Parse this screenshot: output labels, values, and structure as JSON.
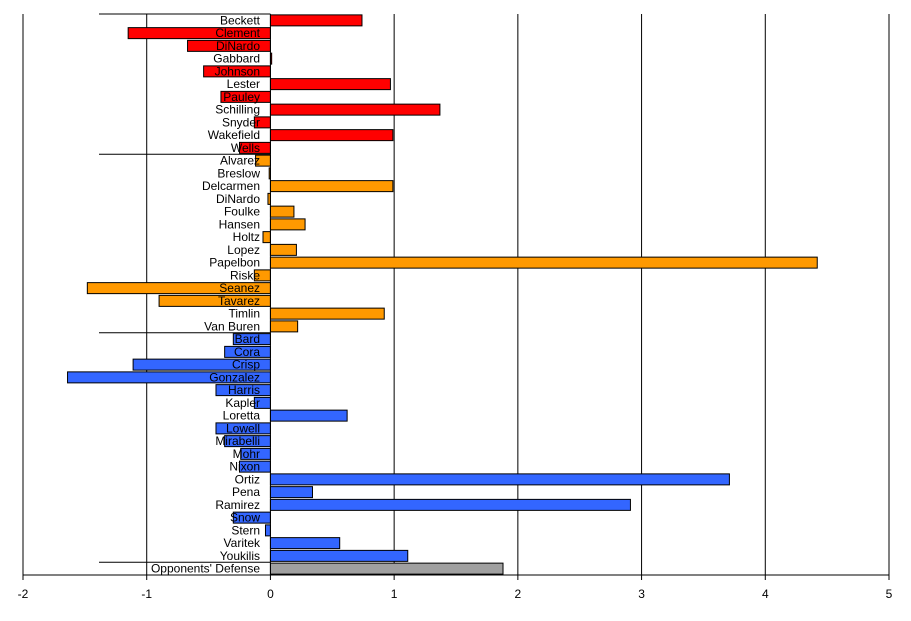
{
  "chart_data": {
    "type": "bar",
    "orientation": "horizontal",
    "title": "",
    "xlabel": "",
    "ylabel": "",
    "xlim": [
      -2,
      5
    ],
    "x_ticks": [
      -2,
      -1,
      0,
      1,
      2,
      3,
      4,
      5
    ],
    "grid": "vertical",
    "legend": "none",
    "group_colors": {
      "starters": "#ff0000",
      "relievers": "#ff9900",
      "position_players": "#3366ff",
      "opponents": "#a0a0a0"
    },
    "categories": [
      "Beckett",
      "Clement",
      "DiNardo",
      "Gabbard",
      "Johnson",
      "Lester",
      "Pauley",
      "Schilling",
      "Snyder",
      "Wakefield",
      "Wells",
      "Alvarez",
      "Breslow",
      "Delcarmen",
      "DiNardo",
      "Foulke",
      "Hansen",
      "Holtz",
      "Lopez",
      "Papelbon",
      "Riske",
      "Seanez",
      "Tavarez",
      "Timlin",
      "Van Buren",
      "Bard",
      "Cora",
      "Crisp",
      "Gonzalez",
      "Harris",
      "Kapler",
      "Loretta",
      "Lowell",
      "Mirabelli",
      "Mohr",
      "Nixon",
      "Ortiz",
      "Pena",
      "Ramirez",
      "Snow",
      "Stern",
      "Varitek",
      "Youkilis",
      "Opponents' Defense"
    ],
    "groups": [
      "starters",
      "starters",
      "starters",
      "starters",
      "starters",
      "starters",
      "starters",
      "starters",
      "starters",
      "starters",
      "starters",
      "relievers",
      "relievers",
      "relievers",
      "relievers",
      "relievers",
      "relievers",
      "relievers",
      "relievers",
      "relievers",
      "relievers",
      "relievers",
      "relievers",
      "relievers",
      "relievers",
      "position_players",
      "position_players",
      "position_players",
      "position_players",
      "position_players",
      "position_players",
      "position_players",
      "position_players",
      "position_players",
      "position_players",
      "position_players",
      "position_players",
      "position_players",
      "position_players",
      "position_players",
      "position_players",
      "position_players",
      "position_players",
      "opponents"
    ],
    "values": [
      0.74,
      -1.15,
      -0.67,
      0.01,
      -0.54,
      0.97,
      -0.4,
      1.37,
      -0.13,
      0.99,
      -0.25,
      -0.12,
      -0.01,
      0.99,
      -0.02,
      0.19,
      0.28,
      -0.06,
      0.21,
      4.42,
      -0.13,
      -1.48,
      -0.9,
      0.92,
      0.22,
      -0.3,
      -0.37,
      -1.11,
      -1.64,
      -0.44,
      -0.13,
      0.62,
      -0.44,
      -0.37,
      -0.24,
      -0.25,
      3.71,
      0.34,
      2.91,
      -0.3,
      -0.04,
      0.56,
      1.11,
      1.88
    ],
    "group_separators_after": [
      10,
      24,
      42
    ]
  }
}
